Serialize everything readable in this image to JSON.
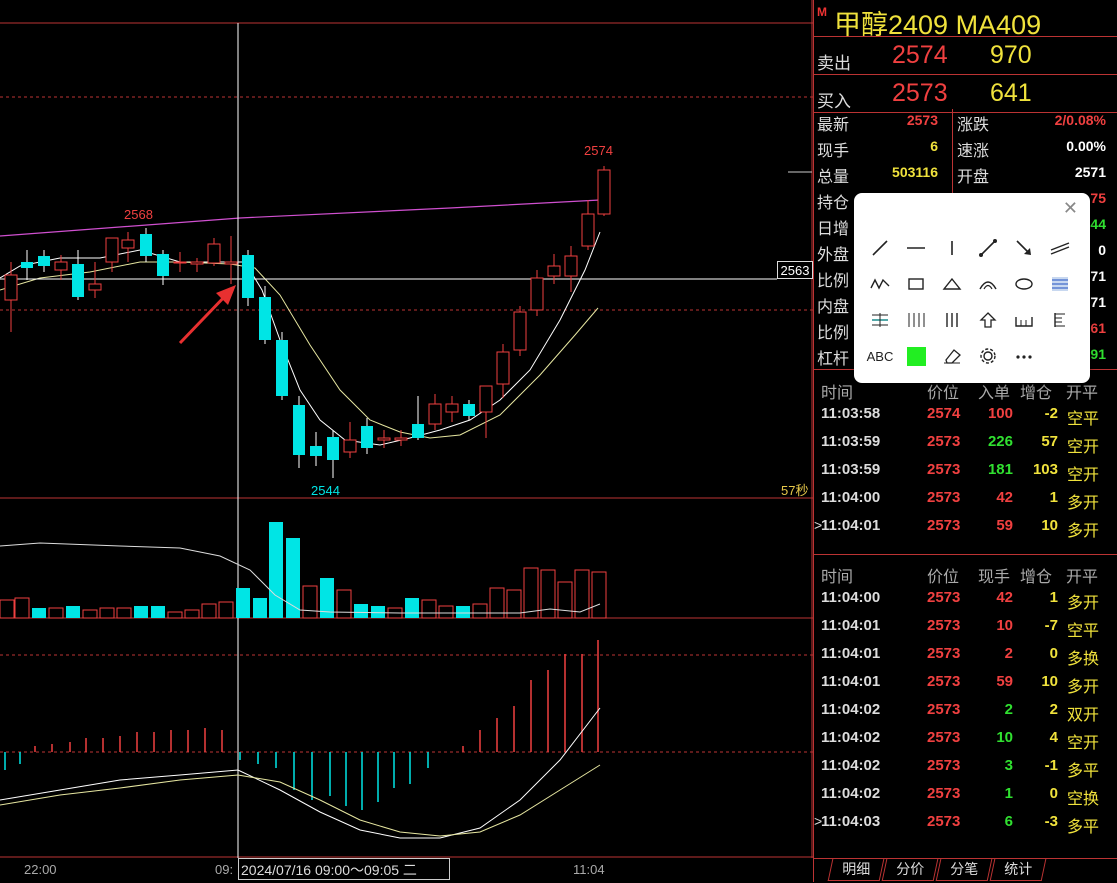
{
  "chart": {
    "ann_high": "2574",
    "ann_prev_high": "2568",
    "ann_low": "2544",
    "price_tag": "2563",
    "countdown": "57秒",
    "time_left": "22:00",
    "time_mid": "09:",
    "time_right": "11:04",
    "crosshair_time": "2024/07/16 09:00～09:05 二",
    "colors": {
      "up": "#f04040",
      "down": "#00e5e5",
      "ma_fast": "#ffffff",
      "ma_slow": "#e6e6a0",
      "ma_long": "#d050d0"
    }
  },
  "panel": {
    "badge": "M",
    "title": "甲醇2409  MA409",
    "sell": {
      "label": "卖出",
      "price": "2574",
      "volume": "970"
    },
    "buy": {
      "label": "买入",
      "price": "2573",
      "volume": "641"
    },
    "stats": [
      {
        "label": "最新",
        "value": "2573",
        "color": "#f04040",
        "label2": "涨跌",
        "value2": "2/0.08%",
        "color2": "#f04040"
      },
      {
        "label": "现手",
        "value": "6",
        "color": "#f0e23c",
        "label2": "速涨",
        "value2": "0.00%",
        "color2": "#ffffff"
      },
      {
        "label": "总量",
        "value": "503116",
        "color": "#f0e23c",
        "label2": "开盘",
        "value2": "2571",
        "color2": "#ffffff"
      },
      {
        "label": "持仓",
        "value": "",
        "color": "#f0e23c",
        "label2": "",
        "value2": "75",
        "color2": "#f04040"
      },
      {
        "label": "日增",
        "value": "",
        "color": "#f0e23c",
        "label2": "",
        "value2": "44",
        "color2": "#30e030"
      },
      {
        "label": "外盘",
        "value": "",
        "color": "#f04040",
        "label2": "",
        "value2": "0",
        "color2": "#ffffff"
      },
      {
        "label": "比例",
        "value": "",
        "color": "#ffffff",
        "label2": "",
        "value2": "71",
        "color2": "#ffffff"
      },
      {
        "label": "内盘",
        "value": "",
        "color": "#30e030",
        "label2": "",
        "value2": "71",
        "color2": "#ffffff"
      },
      {
        "label": "比例",
        "value": "",
        "color": "#ffffff",
        "label2": "",
        "value2": "61",
        "color2": "#f04040"
      },
      {
        "label": "杠杆",
        "value": "",
        "color": "#ffffff",
        "label2": "",
        "value2": "91",
        "color2": "#30e030"
      }
    ],
    "table1": {
      "headers": {
        "time": "时间",
        "price": "价位",
        "vol": "入单",
        "oi": "增仓",
        "type": "开平"
      },
      "rows": [
        {
          "time": "11:03:58",
          "price": "2574",
          "vol": "100",
          "vol_color": "#f04040",
          "oi": "-2",
          "oi_color": "#f0e23c",
          "type": "空平",
          "marker": ""
        },
        {
          "time": "11:03:59",
          "price": "2573",
          "vol": "226",
          "vol_color": "#30e030",
          "oi": "57",
          "oi_color": "#f0e23c",
          "type": "空开",
          "marker": ""
        },
        {
          "time": "11:03:59",
          "price": "2573",
          "vol": "181",
          "vol_color": "#30e030",
          "oi": "103",
          "oi_color": "#f0e23c",
          "type": "空开",
          "marker": ""
        },
        {
          "time": "11:04:00",
          "price": "2573",
          "vol": "42",
          "vol_color": "#f04040",
          "oi": "1",
          "oi_color": "#f0e23c",
          "type": "多开",
          "marker": ""
        },
        {
          "time": "11:04:01",
          "price": "2573",
          "vol": "59",
          "vol_color": "#f04040",
          "oi": "10",
          "oi_color": "#f0e23c",
          "type": "多开",
          "marker": ">"
        }
      ]
    },
    "table2": {
      "headers": {
        "time": "时间",
        "price": "价位",
        "vol": "现手",
        "oi": "增仓",
        "type": "开平"
      },
      "rows": [
        {
          "time": "11:04:00",
          "price": "2573",
          "vol": "42",
          "vol_color": "#f04040",
          "oi": "1",
          "oi_color": "#f0e23c",
          "type": "多开",
          "marker": ""
        },
        {
          "time": "11:04:01",
          "price": "2573",
          "vol": "10",
          "vol_color": "#f04040",
          "oi": "-7",
          "oi_color": "#f0e23c",
          "type": "空平",
          "marker": ""
        },
        {
          "time": "11:04:01",
          "price": "2573",
          "vol": "2",
          "vol_color": "#f04040",
          "oi": "0",
          "oi_color": "#f0e23c",
          "type": "多换",
          "marker": ""
        },
        {
          "time": "11:04:01",
          "price": "2573",
          "vol": "59",
          "vol_color": "#f04040",
          "oi": "10",
          "oi_color": "#f0e23c",
          "type": "多开",
          "marker": ""
        },
        {
          "time": "11:04:02",
          "price": "2573",
          "vol": "2",
          "vol_color": "#30e030",
          "oi": "2",
          "oi_color": "#f0e23c",
          "type": "双开",
          "marker": ""
        },
        {
          "time": "11:04:02",
          "price": "2573",
          "vol": "10",
          "vol_color": "#30e030",
          "oi": "4",
          "oi_color": "#f0e23c",
          "type": "空开",
          "marker": ""
        },
        {
          "time": "11:04:02",
          "price": "2573",
          "vol": "3",
          "vol_color": "#30e030",
          "oi": "-1",
          "oi_color": "#f0e23c",
          "type": "多平",
          "marker": ""
        },
        {
          "time": "11:04:02",
          "price": "2573",
          "vol": "1",
          "vol_color": "#30e030",
          "oi": "0",
          "oi_color": "#f0e23c",
          "type": "空换",
          "marker": ""
        },
        {
          "time": "11:04:03",
          "price": "2573",
          "vol": "6",
          "vol_color": "#30e030",
          "oi": "-3",
          "oi_color": "#f0e23c",
          "type": "多平",
          "marker": ">"
        }
      ]
    },
    "tabs": [
      "明细",
      "分价",
      "分笔",
      "统计"
    ]
  },
  "draw_tools": {
    "close": "✕",
    "abc": "ABC",
    "fill_color": "#22ee22",
    "icons": [
      "line-icon",
      "hline-icon",
      "vline-icon",
      "segment-icon",
      "arrow-icon",
      "parallel-icon",
      "polyline-icon",
      "rect-icon",
      "triangle-icon",
      "arc-icon",
      "ellipse-icon",
      "fib-icon",
      "gann-icon",
      "cycle-icon",
      "tri-line-icon",
      "up-arrow-icon",
      "bracket-icon",
      "e-icon",
      "text-icon",
      "color-icon",
      "eraser-icon",
      "settings-icon",
      "more-icon"
    ]
  }
}
